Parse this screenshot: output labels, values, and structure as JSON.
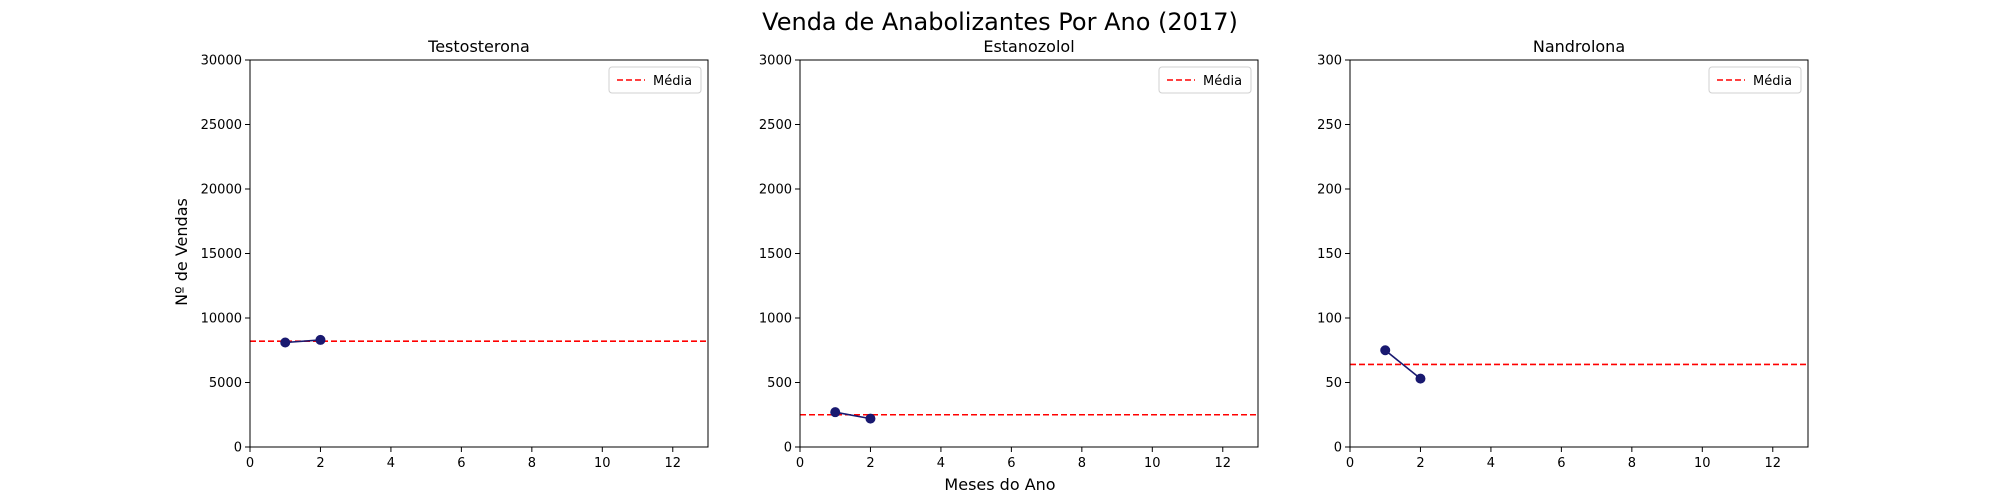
{
  "figure": {
    "suptitle": "Venda de Anabolizantes Por Ano (2017)",
    "xlabel": "Meses do Ano",
    "ylabel": "Nº de Vendas"
  },
  "colors": {
    "line": "#191970",
    "marker": "#191970",
    "mean": "#ff0000"
  },
  "chart_data": [
    {
      "type": "line",
      "title": "Testosterona",
      "x": [
        1,
        2
      ],
      "series": [
        {
          "values": [
            8100,
            8300
          ]
        }
      ],
      "mean": 8200,
      "mean_label": "Média",
      "xlim": [
        0,
        13
      ],
      "ylim": [
        0,
        30000
      ],
      "xticks": [
        0,
        2,
        4,
        6,
        8,
        10,
        12
      ],
      "yticks": [
        0,
        5000,
        10000,
        15000,
        20000,
        25000,
        30000
      ],
      "legend": "top-right",
      "grid": false
    },
    {
      "type": "line",
      "title": "Estanozolol",
      "x": [
        1,
        2
      ],
      "series": [
        {
          "values": [
            270,
            220
          ]
        }
      ],
      "mean": 250,
      "mean_label": "Média",
      "xlim": [
        0,
        13
      ],
      "ylim": [
        0,
        3000
      ],
      "xticks": [
        0,
        2,
        4,
        6,
        8,
        10,
        12
      ],
      "yticks": [
        0,
        500,
        1000,
        1500,
        2000,
        2500,
        3000
      ],
      "legend": "top-right",
      "grid": false
    },
    {
      "type": "line",
      "title": "Nandrolona",
      "x": [
        1,
        2
      ],
      "series": [
        {
          "values": [
            75,
            53
          ]
        }
      ],
      "mean": 64,
      "mean_label": "Média",
      "xlim": [
        0,
        13
      ],
      "ylim": [
        0,
        300
      ],
      "xticks": [
        0,
        2,
        4,
        6,
        8,
        10,
        12
      ],
      "yticks": [
        0,
        50,
        100,
        150,
        200,
        250,
        300
      ],
      "legend": "top-right",
      "grid": false
    }
  ]
}
